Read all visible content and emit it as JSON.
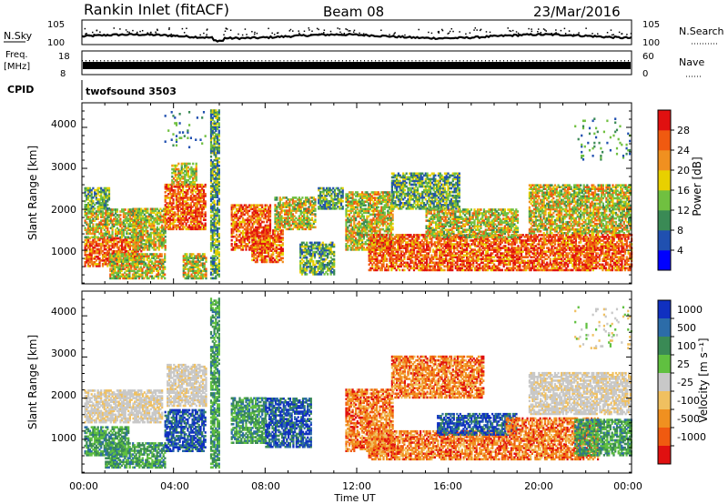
{
  "header": {
    "station": "Rankin Inlet (fitACF)",
    "beam": "Beam 08",
    "date": "23/Mar/2016"
  },
  "nsky_panel": {
    "left_label": "N.Sky",
    "right_label": "N.Search",
    "left_ticks": [
      "10^5",
      "10^0"
    ],
    "right_ticks": [
      "10^5",
      "10^0"
    ]
  },
  "freq_panel": {
    "left_label_1": "Freq.",
    "left_label_2": "[MHz]",
    "right_label": "Nave",
    "left_ticks": [
      "18",
      "8"
    ],
    "right_ticks": [
      "60",
      "0"
    ]
  },
  "cpid_panel": {
    "label": "CPID",
    "value": "twofsound 3503"
  },
  "xaxis": {
    "title": "Time UT",
    "ticks": [
      "00:00",
      "04:00",
      "08:00",
      "12:00",
      "16:00",
      "20:00",
      "00:00"
    ]
  },
  "power_panel": {
    "ylabel": "Slant Range [km]",
    "yticks": [
      "1000",
      "2000",
      "3000",
      "4000"
    ],
    "colorbar_title": "Power [dB]",
    "colorbar_labels": [
      "4",
      "8",
      "12",
      "16",
      "20",
      "24",
      "28"
    ],
    "colors": [
      "#0000ff",
      "#2050b0",
      "#3a8a55",
      "#70c040",
      "#e8d000",
      "#f09020",
      "#f05a10",
      "#e01010"
    ]
  },
  "velocity_panel": {
    "ylabel": "Slant Range [km]",
    "yticks": [
      "1000",
      "2000",
      "3000",
      "4000"
    ],
    "colorbar_title": "Velocity [m s⁻¹]",
    "colorbar_labels": [
      "1000",
      "500",
      "100",
      "25",
      "-25",
      "-100",
      "-500",
      "-1000"
    ],
    "colors": [
      "#1030c0",
      "#2c6ca8",
      "#3a8a55",
      "#60c040",
      "#c8c8c8",
      "#f0c060",
      "#f09020",
      "#f05a10",
      "#e01010"
    ]
  },
  "chart_data": {
    "type": "heatmap",
    "x_unit": "hours UT",
    "xlim": [
      0,
      24
    ],
    "ylim": [
      180,
      4600
    ],
    "power_regions": [
      {
        "t0": 0.1,
        "t1": 2.6,
        "r0": 600,
        "r1": 1300,
        "cat": "high"
      },
      {
        "t0": 0.1,
        "t1": 2.6,
        "r0": 1300,
        "r1": 2000,
        "cat": "mid"
      },
      {
        "t0": 0.1,
        "t1": 1.2,
        "r0": 2000,
        "r1": 2500,
        "cat": "low"
      },
      {
        "t0": 1.2,
        "t1": 3.6,
        "r0": 300,
        "r1": 900,
        "cat": "mid"
      },
      {
        "t0": 2.2,
        "t1": 3.6,
        "r0": 1000,
        "r1": 2000,
        "cat": "mid"
      },
      {
        "t0": 3.6,
        "t1": 5.4,
        "r0": 1500,
        "r1": 2600,
        "cat": "high"
      },
      {
        "t0": 3.9,
        "t1": 5.0,
        "r0": 2600,
        "r1": 3100,
        "cat": "mid"
      },
      {
        "t0": 4.4,
        "t1": 5.4,
        "r0": 300,
        "r1": 900,
        "cat": "mid"
      },
      {
        "t0": 5.6,
        "t1": 6.0,
        "r0": 300,
        "r1": 4400,
        "cat": "low"
      },
      {
        "t0": 6.5,
        "t1": 8.2,
        "r0": 1000,
        "r1": 2100,
        "cat": "high"
      },
      {
        "t0": 7.4,
        "t1": 8.8,
        "r0": 700,
        "r1": 1500,
        "cat": "high"
      },
      {
        "t0": 8.4,
        "t1": 10.2,
        "r0": 1500,
        "r1": 2300,
        "cat": "mid"
      },
      {
        "t0": 10.3,
        "t1": 11.4,
        "r0": 2000,
        "r1": 2500,
        "cat": "low"
      },
      {
        "t0": 9.5,
        "t1": 11.0,
        "r0": 400,
        "r1": 1200,
        "cat": "low"
      },
      {
        "t0": 11.5,
        "t1": 13.6,
        "r0": 1000,
        "r1": 2400,
        "cat": "mid"
      },
      {
        "t0": 12.5,
        "t1": 22.3,
        "r0": 500,
        "r1": 1400,
        "cat": "high"
      },
      {
        "t0": 15.0,
        "t1": 19.0,
        "r0": 1300,
        "r1": 2000,
        "cat": "mid"
      },
      {
        "t0": 13.5,
        "t1": 16.5,
        "r0": 2000,
        "r1": 2900,
        "cat": "low"
      },
      {
        "t0": 19.5,
        "t1": 24.0,
        "r0": 1400,
        "r1": 2600,
        "cat": "mid"
      },
      {
        "t0": 22.0,
        "t1": 24.0,
        "r0": 500,
        "r1": 1400,
        "cat": "high"
      },
      {
        "t0": 21.5,
        "t1": 24.0,
        "r0": 3200,
        "r1": 4200,
        "cat": "sparse"
      },
      {
        "t0": 3.6,
        "t1": 5.4,
        "r0": 3500,
        "r1": 4400,
        "cat": "sparse"
      }
    ],
    "velocity_regions": [
      {
        "t0": 0.1,
        "t1": 2.0,
        "r0": 600,
        "r1": 1300,
        "cat": "pos"
      },
      {
        "t0": 0.1,
        "t1": 3.5,
        "r0": 1400,
        "r1": 2200,
        "cat": "gray"
      },
      {
        "t0": 1.0,
        "t1": 3.6,
        "r0": 300,
        "r1": 900,
        "cat": "pos"
      },
      {
        "t0": 3.6,
        "t1": 5.4,
        "r0": 700,
        "r1": 1700,
        "cat": "strongpos"
      },
      {
        "t0": 3.7,
        "t1": 5.4,
        "r0": 1800,
        "r1": 2800,
        "cat": "gray"
      },
      {
        "t0": 5.6,
        "t1": 6.0,
        "r0": 300,
        "r1": 4400,
        "cat": "pos"
      },
      {
        "t0": 6.5,
        "t1": 8.0,
        "r0": 900,
        "r1": 2000,
        "cat": "pos"
      },
      {
        "t0": 8.0,
        "t1": 10.0,
        "r0": 800,
        "r1": 2000,
        "cat": "strongpos"
      },
      {
        "t0": 11.5,
        "t1": 13.6,
        "r0": 700,
        "r1": 2200,
        "cat": "neg"
      },
      {
        "t0": 12.5,
        "t1": 18.5,
        "r0": 500,
        "r1": 1200,
        "cat": "neg"
      },
      {
        "t0": 15.5,
        "t1": 19.0,
        "r0": 1100,
        "r1": 1600,
        "cat": "strongpos"
      },
      {
        "t0": 18.5,
        "t1": 22.5,
        "r0": 500,
        "r1": 1500,
        "cat": "neg"
      },
      {
        "t0": 19.5,
        "t1": 24.0,
        "r0": 1600,
        "r1": 2600,
        "cat": "gray"
      },
      {
        "t0": 21.5,
        "t1": 24.0,
        "r0": 600,
        "r1": 1500,
        "cat": "pos"
      },
      {
        "t0": 13.5,
        "t1": 17.5,
        "r0": 2000,
        "r1": 3000,
        "cat": "neg"
      },
      {
        "t0": 21.5,
        "t1": 24.0,
        "r0": 3200,
        "r1": 4200,
        "cat": "sparse"
      }
    ]
  }
}
